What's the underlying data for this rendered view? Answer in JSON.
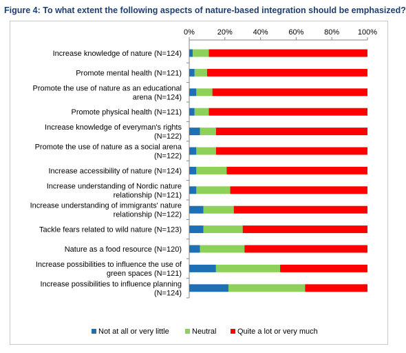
{
  "title": "Figure 4: To what extent the following aspects of nature-based integration should be emphasized?",
  "chart_data": {
    "type": "bar",
    "orientation": "horizontal",
    "stacked": "percent",
    "x_ticks": [
      "0%",
      "20%",
      "40%",
      "60%",
      "80%",
      "100%"
    ],
    "xlim": [
      0,
      100
    ],
    "grid": false,
    "legend_position": "bottom",
    "categories": [
      [
        "Increase knowledge of nature (N=124)"
      ],
      [
        "Promote mental health (N=121)"
      ],
      [
        "Promote the use of nature as an educational",
        "arena (N=124)"
      ],
      [
        "Promote physical health (N=121)"
      ],
      [
        "Increase knowledge of everyman's rights",
        "(N=122)"
      ],
      [
        "Promote the use of nature as a social arena",
        "(N=122)"
      ],
      [
        "Increase accessibility of nature (N=124)"
      ],
      [
        "Increase understanding of Nordic nature",
        "relationship (N=121)"
      ],
      [
        "Increase understanding of immigrants' nature",
        "relationship (N=122)"
      ],
      [
        "Tackle fears related to wild nature (N=123)"
      ],
      [
        "Nature as a food resource (N=120)"
      ],
      [
        "Increase possibilities to influence the use of",
        "green spaces (N=121)"
      ],
      [
        "Increase possibilities to influence planning",
        "(N=124)"
      ]
    ],
    "series": [
      {
        "name": "Not at all or very little",
        "color": "#1f6fb5",
        "values": [
          2,
          3,
          4,
          3,
          6,
          4,
          4,
          4,
          8,
          8,
          6,
          15,
          22
        ]
      },
      {
        "name": "Neutral",
        "color": "#8dd15a",
        "values": [
          9,
          7,
          9,
          8,
          9,
          11,
          17,
          19,
          17,
          22,
          25,
          36,
          43
        ]
      },
      {
        "name": "Quite a lot or very much",
        "color": "#ff0000",
        "values": [
          89,
          90,
          87,
          89,
          85,
          85,
          79,
          77,
          75,
          70,
          69,
          49,
          35
        ]
      }
    ]
  }
}
